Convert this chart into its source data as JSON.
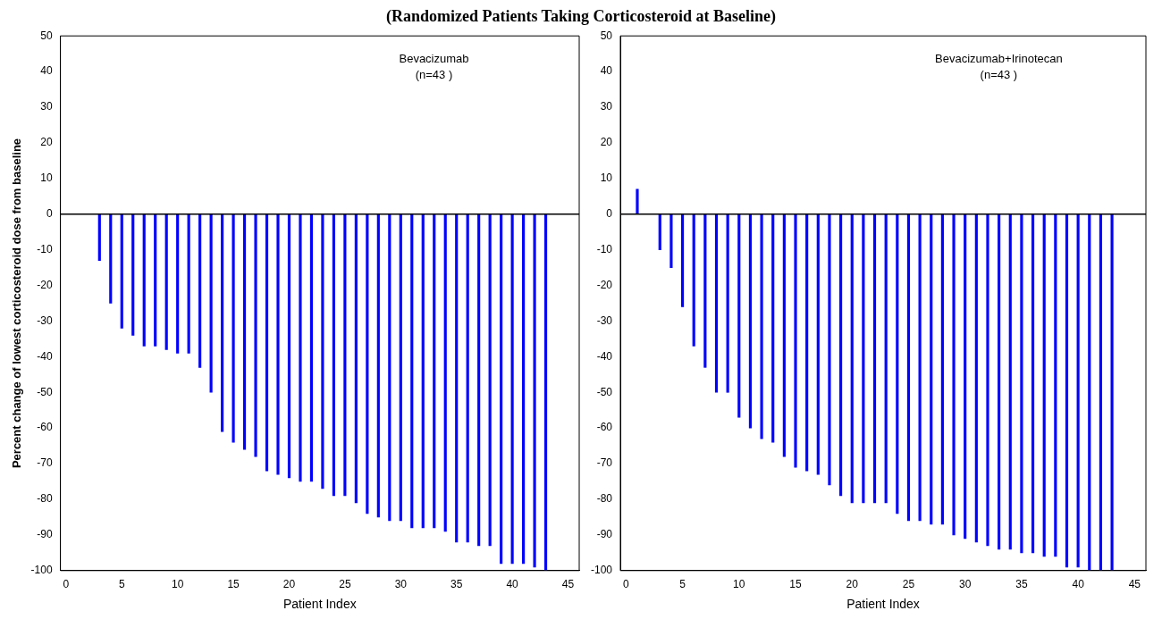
{
  "chart_data": [
    {
      "type": "bar",
      "title": "(Randomized Patients Taking Corticosteroid at Baseline)",
      "xlabel": "Patient Index",
      "ylabel": "Percent change of lowest corticosteroid dose from baseline",
      "annotations": [
        "Bevacizumab",
        "(n=43 )"
      ],
      "x": [
        3,
        4,
        5,
        6,
        7,
        8,
        9,
        10,
        11,
        12,
        13,
        14,
        15,
        16,
        17,
        18,
        19,
        20,
        21,
        22,
        23,
        24,
        25,
        26,
        27,
        28,
        29,
        30,
        31,
        32,
        33,
        34,
        35,
        36,
        37,
        38,
        39,
        40,
        41,
        42,
        43
      ],
      "values": [
        -13,
        -25,
        -32,
        -34,
        -37,
        -37,
        -38,
        -39,
        -39,
        -43,
        -50,
        -61,
        -64,
        -66,
        -68,
        -72,
        -73,
        -74,
        -75,
        -75,
        -77,
        -79,
        -79,
        -81,
        -84,
        -85,
        -86,
        -86,
        -88,
        -88,
        -88,
        -89,
        -92,
        -92,
        -93,
        -93,
        -98,
        -98,
        -98,
        -99,
        -100
      ],
      "color": "#0000ff",
      "xlim": [
        -0.5,
        46
      ],
      "xticks": [
        0,
        5,
        10,
        15,
        20,
        25,
        30,
        35,
        40,
        45
      ],
      "ylim": [
        -100,
        50
      ],
      "yticks": [
        -100,
        -90,
        -80,
        -70,
        -60,
        -50,
        -40,
        -30,
        -20,
        -10,
        0,
        10,
        20,
        30,
        40,
        50
      ],
      "ref_lines": [
        {
          "axis": "y",
          "value": 0,
          "color": "#000000"
        }
      ],
      "grid": false,
      "legend": false
    },
    {
      "type": "bar",
      "xlabel": "Patient Index",
      "annotations": [
        "Bevacizumab+Irinotecan",
        "(n=43 )"
      ],
      "x": [
        1,
        3,
        4,
        5,
        6,
        7,
        8,
        9,
        10,
        11,
        12,
        13,
        14,
        15,
        16,
        17,
        18,
        19,
        20,
        21,
        22,
        23,
        24,
        25,
        26,
        27,
        28,
        29,
        30,
        31,
        32,
        33,
        34,
        35,
        36,
        37,
        38,
        39,
        40,
        41,
        42,
        43
      ],
      "values": [
        7,
        -10,
        -15,
        -26,
        -37,
        -43,
        -50,
        -50,
        -57,
        -60,
        -63,
        -64,
        -68,
        -71,
        -72,
        -73,
        -76,
        -79,
        -81,
        -81,
        -81,
        -81,
        -84,
        -86,
        -86,
        -87,
        -87,
        -90,
        -91,
        -92,
        -93,
        -94,
        -94,
        -95,
        -95,
        -96,
        -96,
        -99,
        -99,
        -100,
        -100,
        -100
      ],
      "color": "#0000ff",
      "xlim": [
        -0.5,
        46
      ],
      "xticks": [
        0,
        5,
        10,
        15,
        20,
        25,
        30,
        35,
        40,
        45
      ],
      "ylim": [
        -100,
        50
      ],
      "yticks": [
        -100,
        -90,
        -80,
        -70,
        -60,
        -50,
        -40,
        -30,
        -20,
        -10,
        0,
        10,
        20,
        30,
        40,
        50
      ],
      "ref_lines": [
        {
          "axis": "y",
          "value": 0,
          "color": "#000000"
        }
      ],
      "grid": false,
      "legend": false
    }
  ]
}
